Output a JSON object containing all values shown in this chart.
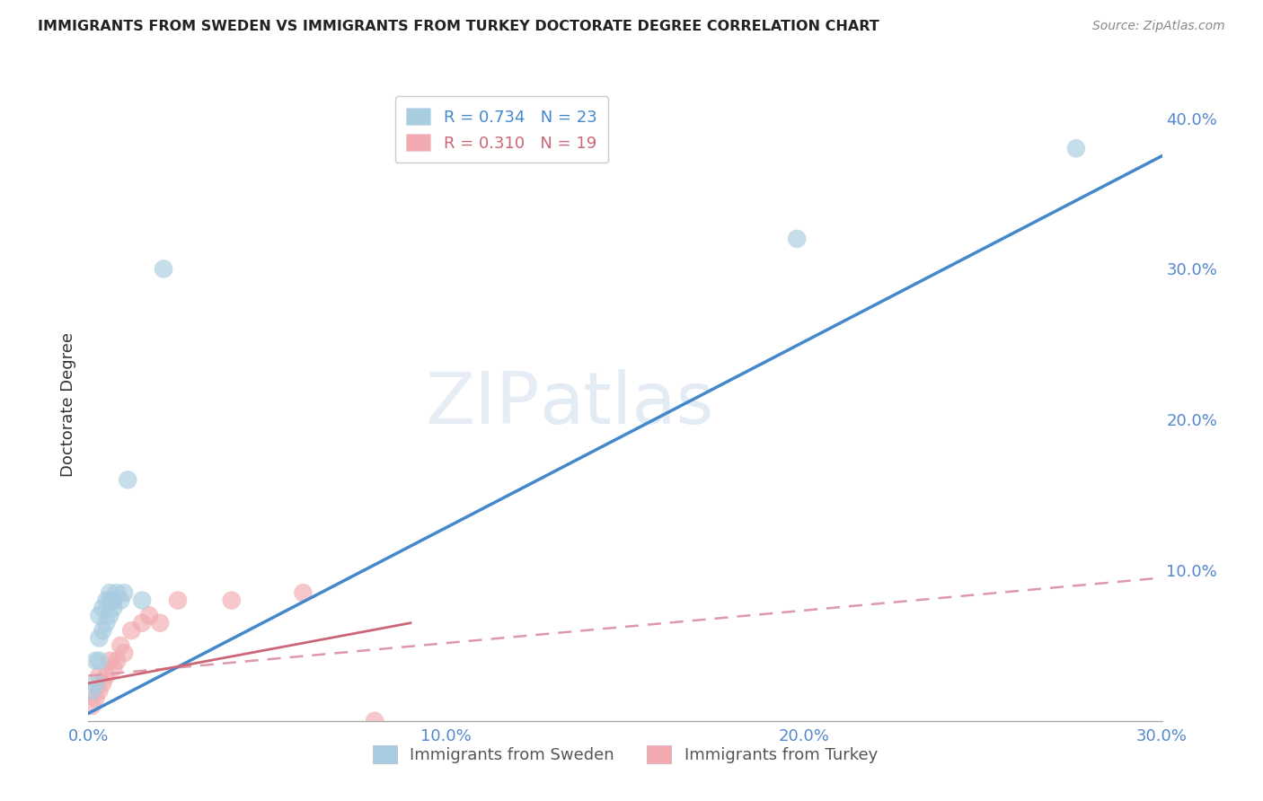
{
  "title": "IMMIGRANTS FROM SWEDEN VS IMMIGRANTS FROM TURKEY DOCTORATE DEGREE CORRELATION CHART",
  "source": "Source: ZipAtlas.com",
  "ylabel": "Doctorate Degree",
  "xlim": [
    0.0,
    0.3
  ],
  "ylim": [
    0.0,
    0.42
  ],
  "xticks": [
    0.0,
    0.1,
    0.2,
    0.3
  ],
  "xtick_labels": [
    "0.0%",
    "10.0%",
    "20.0%",
    "30.0%"
  ],
  "yticks_right": [
    0.1,
    0.2,
    0.3,
    0.4
  ],
  "ytick_labels_right": [
    "10.0%",
    "20.0%",
    "30.0%",
    "40.0%"
  ],
  "sweden_color": "#a8cce0",
  "turkey_color": "#f2aab0",
  "sweden_line_color": "#4488cc",
  "turkey_line_solid_color": "#cc6677",
  "turkey_line_dash_color": "#dd99aa",
  "watermark_zip": "ZIP",
  "watermark_atlas": "atlas",
  "sweden_label": "Immigrants from Sweden",
  "turkey_label": "Immigrants from Turkey",
  "legend_sweden_text": "R = 0.734   N = 23",
  "legend_turkey_text": "R = 0.310   N = 19",
  "background_color": "#ffffff",
  "grid_color": "#cccccc",
  "title_color": "#222222",
  "tick_color": "#5588cc",
  "sweden_points_x": [
    0.001,
    0.002,
    0.002,
    0.003,
    0.003,
    0.003,
    0.004,
    0.004,
    0.005,
    0.005,
    0.006,
    0.006,
    0.006,
    0.007,
    0.007,
    0.008,
    0.009,
    0.01,
    0.011,
    0.015,
    0.021,
    0.198,
    0.276
  ],
  "sweden_points_y": [
    0.02,
    0.025,
    0.04,
    0.04,
    0.055,
    0.07,
    0.06,
    0.075,
    0.065,
    0.08,
    0.07,
    0.08,
    0.085,
    0.075,
    0.08,
    0.085,
    0.08,
    0.085,
    0.16,
    0.08,
    0.3,
    0.32,
    0.38
  ],
  "turkey_points_x": [
    0.001,
    0.002,
    0.003,
    0.003,
    0.004,
    0.005,
    0.006,
    0.007,
    0.008,
    0.009,
    0.01,
    0.012,
    0.015,
    0.017,
    0.02,
    0.025,
    0.04,
    0.06,
    0.08
  ],
  "turkey_points_y": [
    0.01,
    0.015,
    0.02,
    0.03,
    0.025,
    0.03,
    0.04,
    0.035,
    0.04,
    0.05,
    0.045,
    0.06,
    0.065,
    0.07,
    0.065,
    0.08,
    0.08,
    0.085,
    0.0
  ],
  "sweden_line_x": [
    0.0,
    0.3
  ],
  "sweden_line_y": [
    0.005,
    0.375
  ],
  "turkey_solid_line_x": [
    0.0,
    0.09
  ],
  "turkey_solid_line_y": [
    0.025,
    0.065
  ],
  "turkey_dash_line_x": [
    0.0,
    0.3
  ],
  "turkey_dash_line_y": [
    0.03,
    0.095
  ]
}
